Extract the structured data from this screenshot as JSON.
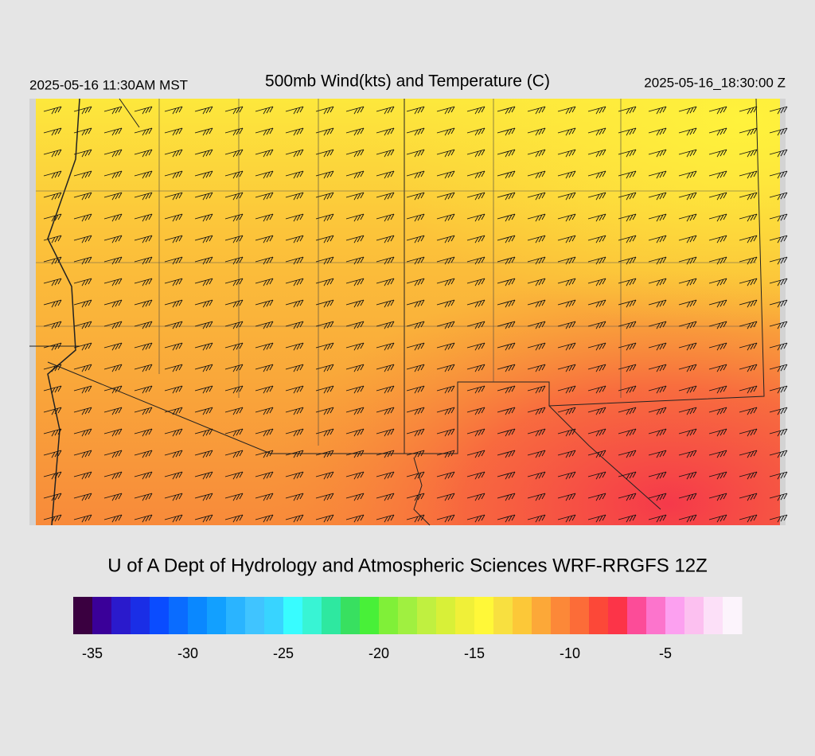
{
  "header": {
    "title": "500mb Wind(kts) and Temperature (C)",
    "local_time": "2025-05-16 11:30AM MST",
    "utc_time": "2025-05-16_18:30:00 Z"
  },
  "credit": "U of A Dept of Hydrology and Atmospheric Sciences WRF-RRGFS 12Z",
  "colorbar": {
    "range": [
      -36,
      -1
    ],
    "ticks": [
      -35,
      -30,
      -25,
      -20,
      -15,
      -10,
      -5
    ],
    "colors": [
      "#3a0040",
      "#3a0099",
      "#2a1acc",
      "#1a2ee6",
      "#0a4cff",
      "#0a6cff",
      "#0a88ff",
      "#12a0ff",
      "#2ab4ff",
      "#40c4ff",
      "#38d4ff",
      "#38fcff",
      "#38f4d4",
      "#2ee8a0",
      "#38e060",
      "#48f038",
      "#80f038",
      "#a0f040",
      "#c0f040",
      "#d8f038",
      "#f0f038",
      "#fff838",
      "#f8e040",
      "#fcc838",
      "#fca838",
      "#fc8838",
      "#fc6c38",
      "#fc4838",
      "#fc3448",
      "#fc4c98",
      "#fc74cc",
      "#fca0f0",
      "#fcc0f0",
      "#fce0f8",
      "#fcf4fc"
    ]
  }
}
